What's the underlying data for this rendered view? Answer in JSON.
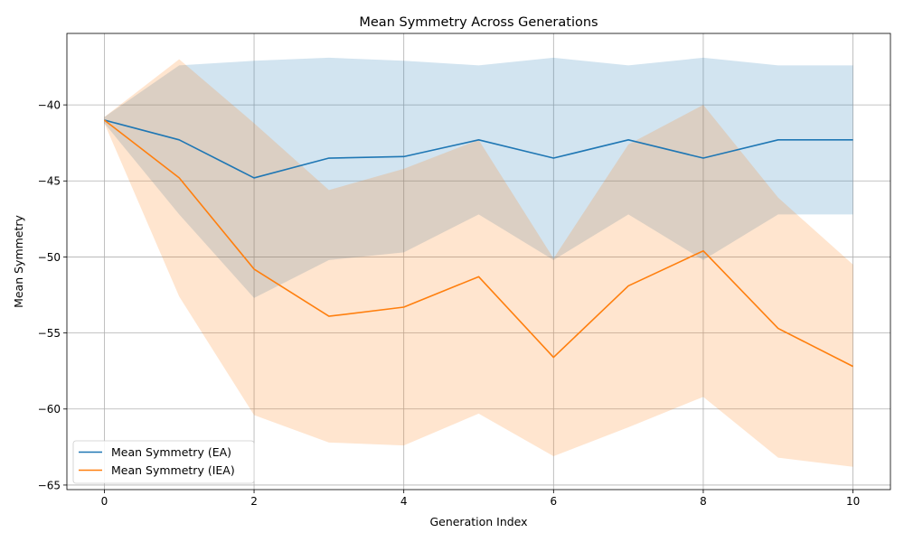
{
  "chart_data": {
    "type": "line",
    "title": "Mean Symmetry Across Generations",
    "xlabel": "Generation Index",
    "ylabel": "Mean Symmetry",
    "xlim": [
      -0.5,
      10.5
    ],
    "ylim": [
      -65.3,
      -35.3
    ],
    "xticks": [
      0,
      2,
      4,
      6,
      8,
      10
    ],
    "yticks": [
      -65,
      -60,
      -55,
      -50,
      -45,
      -40
    ],
    "grid": true,
    "legend_position": "lower-left",
    "x": [
      0,
      1,
      2,
      3,
      4,
      5,
      6,
      7,
      8,
      9,
      10
    ],
    "series": [
      {
        "name": "Mean Symmetry (EA)",
        "color": "#1f77b4",
        "band_color": "#1f77b4",
        "values": [
          -41.0,
          -42.3,
          -44.8,
          -43.5,
          -43.4,
          -42.3,
          -43.5,
          -42.3,
          -43.5,
          -42.3,
          -42.3
        ],
        "upper": [
          -40.8,
          -37.4,
          -37.1,
          -36.9,
          -37.1,
          -37.4,
          -36.9,
          -37.4,
          -36.9,
          -37.4,
          -37.4
        ],
        "lower": [
          -41.2,
          -47.2,
          -52.7,
          -50.2,
          -49.7,
          -47.2,
          -50.2,
          -47.2,
          -50.2,
          -47.2,
          -47.2
        ]
      },
      {
        "name": "Mean Symmetry (IEA)",
        "color": "#ff7f0e",
        "band_color": "#ff7f0e",
        "values": [
          -41.0,
          -44.8,
          -50.8,
          -53.9,
          -53.3,
          -51.3,
          -56.6,
          -51.9,
          -49.6,
          -54.7,
          -57.2
        ],
        "upper": [
          -40.8,
          -37.0,
          -41.2,
          -45.6,
          -44.2,
          -42.3,
          -50.1,
          -42.6,
          -40.0,
          -46.1,
          -50.5
        ],
        "lower": [
          -41.2,
          -52.6,
          -60.4,
          -62.2,
          -62.4,
          -60.3,
          -63.1,
          -61.2,
          -59.2,
          -63.2,
          -63.8
        ]
      }
    ]
  }
}
